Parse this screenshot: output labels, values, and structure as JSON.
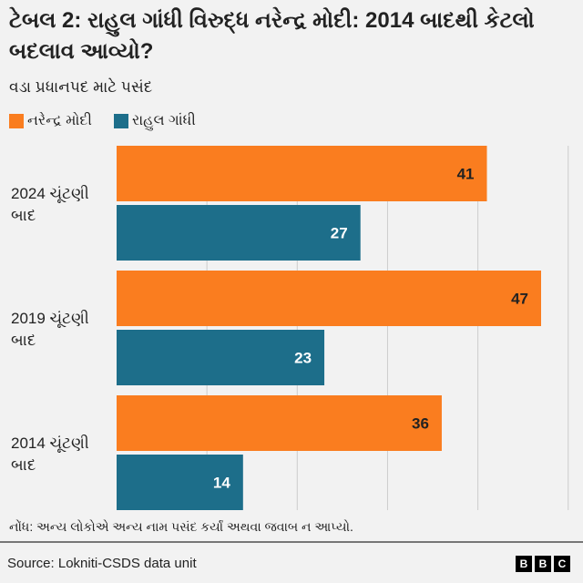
{
  "chart_data": {
    "type": "bar",
    "orientation": "horizontal",
    "title": "ટેબલ 2: રાહુલ ગાંધી વિરુદ્ધ નરેન્દ્ર મોદી: 2014 બાદથી કેટલો બદલાવ આવ્યો?",
    "subtitle": "વડા પ્રધાનપદ માટે પસંદ",
    "categories": [
      "2024 ચૂંટણી બાદ",
      "2019 ચૂંટણી બાદ",
      "2014 ચૂંટણી બાદ"
    ],
    "series": [
      {
        "name": "નરેન્દ્ર મોદી",
        "color": "#fa7d1f",
        "values": [
          41,
          47,
          36
        ]
      },
      {
        "name": "રાહુલ ગાંધી",
        "color": "#1d6e8a",
        "values": [
          27,
          23,
          14
        ]
      }
    ],
    "xlim": [
      0,
      50
    ],
    "grid": true,
    "legend": "top-left",
    "note": "નોંધ: અન્ય લોકોએ અન્ય નામ પસંદ કર્યાં અથવા જવાબ ન આપ્યો.",
    "source": "Source: Lokniti-CSDS data unit"
  },
  "logo": "BBC"
}
